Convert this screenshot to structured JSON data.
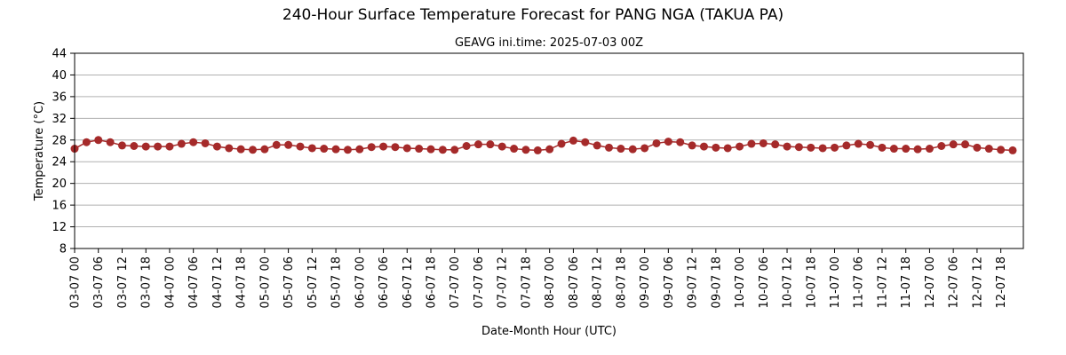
{
  "chart_data": {
    "type": "line",
    "title": "240-Hour Surface Temperature Forecast for PANG NGA (TAKUA PA)",
    "subtitle": "GEAVG ini.time: 2025-07-03 00Z",
    "xlabel": "Date-Month Hour (UTC)",
    "ylabel": "Temperature (°C)",
    "ylim": [
      8,
      44
    ],
    "yticks": [
      8,
      12,
      16,
      20,
      24,
      28,
      32,
      36,
      40,
      44
    ],
    "grid": "horizontal",
    "x": [
      "03-07 00",
      "03-07 03",
      "03-07 06",
      "03-07 09",
      "03-07 12",
      "03-07 15",
      "03-07 18",
      "03-07 21",
      "04-07 00",
      "04-07 03",
      "04-07 06",
      "04-07 09",
      "04-07 12",
      "04-07 15",
      "04-07 18",
      "04-07 21",
      "05-07 00",
      "05-07 03",
      "05-07 06",
      "05-07 09",
      "05-07 12",
      "05-07 15",
      "05-07 18",
      "05-07 21",
      "06-07 00",
      "06-07 03",
      "06-07 06",
      "06-07 09",
      "06-07 12",
      "06-07 15",
      "06-07 18",
      "06-07 21",
      "07-07 00",
      "07-07 03",
      "07-07 06",
      "07-07 09",
      "07-07 12",
      "07-07 15",
      "07-07 18",
      "07-07 21",
      "08-07 00",
      "08-07 03",
      "08-07 06",
      "08-07 09",
      "08-07 12",
      "08-07 15",
      "08-07 18",
      "08-07 21",
      "09-07 00",
      "09-07 03",
      "09-07 06",
      "09-07 09",
      "09-07 12",
      "09-07 15",
      "09-07 18",
      "09-07 21",
      "10-07 00",
      "10-07 03",
      "10-07 06",
      "10-07 09",
      "10-07 12",
      "10-07 15",
      "10-07 18",
      "10-07 21",
      "11-07 00",
      "11-07 03",
      "11-07 06",
      "11-07 09",
      "11-07 12",
      "11-07 15",
      "11-07 18",
      "11-07 21",
      "12-07 00",
      "12-07 03",
      "12-07 06",
      "12-07 09",
      "12-07 12",
      "12-07 15",
      "12-07 18",
      "12-07 21"
    ],
    "xtick_labels": [
      "03-07 00",
      "03-07 06",
      "03-07 12",
      "03-07 18",
      "04-07 00",
      "04-07 06",
      "04-07 12",
      "04-07 18",
      "05-07 00",
      "05-07 06",
      "05-07 12",
      "05-07 18",
      "06-07 00",
      "06-07 06",
      "06-07 12",
      "06-07 18",
      "07-07 00",
      "07-07 06",
      "07-07 12",
      "07-07 18",
      "08-07 00",
      "08-07 06",
      "08-07 12",
      "08-07 18",
      "09-07 00",
      "09-07 06",
      "09-07 12",
      "09-07 18",
      "10-07 00",
      "10-07 06",
      "10-07 12",
      "10-07 18",
      "11-07 00",
      "11-07 06",
      "11-07 12",
      "11-07 18",
      "12-07 00",
      "12-07 06",
      "12-07 12",
      "12-07 18"
    ],
    "series": [
      {
        "values": [
          26.4,
          27.6,
          28.0,
          27.6,
          27.0,
          26.9,
          26.8,
          26.8,
          26.8,
          27.3,
          27.6,
          27.4,
          26.8,
          26.5,
          26.3,
          26.2,
          26.3,
          27.1,
          27.1,
          26.8,
          26.5,
          26.4,
          26.3,
          26.2,
          26.3,
          26.7,
          26.8,
          26.7,
          26.5,
          26.4,
          26.3,
          26.2,
          26.2,
          26.9,
          27.2,
          27.2,
          26.8,
          26.4,
          26.2,
          26.1,
          26.3,
          27.3,
          27.9,
          27.6,
          27.0,
          26.6,
          26.4,
          26.3,
          26.5,
          27.4,
          27.7,
          27.6,
          27.0,
          26.8,
          26.6,
          26.5,
          26.8,
          27.3,
          27.4,
          27.2,
          26.8,
          26.7,
          26.6,
          26.5,
          26.6,
          27.0,
          27.3,
          27.1,
          26.6,
          26.4,
          26.4,
          26.3,
          26.4,
          26.9,
          27.2,
          27.2,
          26.6,
          26.4,
          26.2,
          26.1
        ],
        "color": "#a52a2a"
      }
    ],
    "grid_color": "#b0b0b0"
  }
}
